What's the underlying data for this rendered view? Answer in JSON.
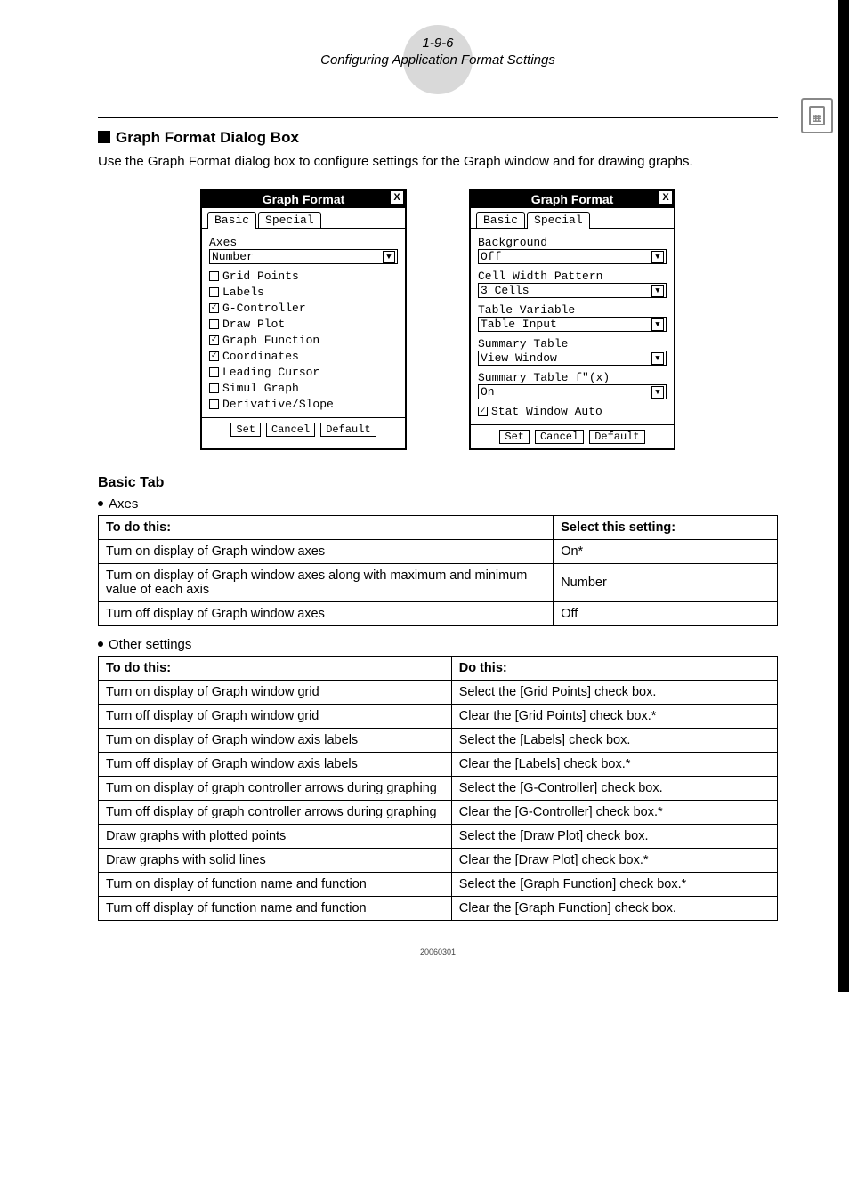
{
  "header": {
    "page_number": "1-9-6",
    "subtitle": "Configuring Application Format Settings"
  },
  "section": {
    "title": "Graph Format Dialog Box",
    "intro": "Use the Graph Format dialog box to configure settings for the Graph window and for drawing graphs."
  },
  "dialog_basic": {
    "title": "Graph Format",
    "tabs": {
      "basic": "Basic",
      "special": "Special"
    },
    "axes_label": "Axes",
    "axes_value": "Number",
    "checks": [
      {
        "label": "Grid Points",
        "checked": false
      },
      {
        "label": "Labels",
        "checked": false
      },
      {
        "label": "G-Controller",
        "checked": true
      },
      {
        "label": "Draw Plot",
        "checked": false
      },
      {
        "label": "Graph Function",
        "checked": true
      },
      {
        "label": "Coordinates",
        "checked": true
      },
      {
        "label": "Leading Cursor",
        "checked": false
      },
      {
        "label": "Simul Graph",
        "checked": false
      },
      {
        "label": "Derivative/Slope",
        "checked": false
      }
    ],
    "buttons": {
      "set": "Set",
      "cancel": "Cancel",
      "default": "Default"
    }
  },
  "dialog_special": {
    "title": "Graph Format",
    "tabs": {
      "basic": "Basic",
      "special": "Special"
    },
    "fields": [
      {
        "label": "Background",
        "value": "Off"
      },
      {
        "label": "Cell Width Pattern",
        "value": "3 Cells"
      },
      {
        "label": "Table Variable",
        "value": "Table Input"
      },
      {
        "label": "Summary Table",
        "value": "View Window"
      },
      {
        "label": "Summary Table f\"(x)",
        "value": "On"
      }
    ],
    "stat_check": {
      "label": "Stat Window Auto",
      "checked": true
    },
    "buttons": {
      "set": "Set",
      "cancel": "Cancel",
      "default": "Default"
    }
  },
  "basic_tab": {
    "title": "Basic Tab",
    "axes_bullet": "Axes",
    "axes_table": {
      "h1": "To do this:",
      "h2": "Select this setting:",
      "rows": [
        {
          "a": "Turn on display of Graph window axes",
          "b": "On*"
        },
        {
          "a": "Turn on display of Graph window axes along with maximum and minimum value of each axis",
          "b": "Number"
        },
        {
          "a": "Turn off display of Graph window axes",
          "b": "Off"
        }
      ]
    },
    "other_bullet": "Other settings",
    "other_table": {
      "h1": "To do this:",
      "h2": "Do this:",
      "rows": [
        {
          "a": "Turn on display of Graph window grid",
          "b": "Select the [Grid Points] check box."
        },
        {
          "a": "Turn off display of Graph window grid",
          "b": "Clear the [Grid Points] check box.*"
        },
        {
          "a": "Turn on display of Graph window axis labels",
          "b": "Select the [Labels] check box."
        },
        {
          "a": "Turn off display of Graph window axis labels",
          "b": "Clear the [Labels] check box.*"
        },
        {
          "a": "Turn on display of graph controller arrows during graphing",
          "b": "Select the [G-Controller] check box."
        },
        {
          "a": "Turn off display of graph controller arrows during graphing",
          "b": "Clear the [G-Controller] check box.*"
        },
        {
          "a": "Draw graphs with plotted points",
          "b": "Select the [Draw Plot] check box."
        },
        {
          "a": "Draw graphs with solid lines",
          "b": "Clear the [Draw Plot] check box.*"
        },
        {
          "a": "Turn on display of function name and function",
          "b": "Select the [Graph Function] check box.*"
        },
        {
          "a": "Turn off display of function name and function",
          "b": "Clear the [Graph Function] check box."
        }
      ]
    }
  },
  "footer": "20060301",
  "colors": {
    "circle_bg": "#d9d9d9",
    "text": "#000000",
    "side_icon": "#888888"
  },
  "col_widths": {
    "axes_table_col1_pct": 67,
    "other_table_col1_pct": 52
  }
}
